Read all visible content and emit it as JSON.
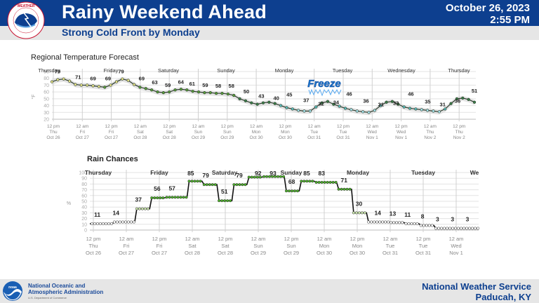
{
  "header": {
    "title": "Rainy Weekend Ahead",
    "subtitle": "Strong Cold Front by Monday",
    "date": "October 26, 2023",
    "time": "2:55 PM",
    "logo_icon": "nws-logo-icon"
  },
  "footer": {
    "noaa_line1": "National Oceanic and",
    "noaa_line2": "Atmospheric Administration",
    "noaa_line3": "U.S. Department of Commerce",
    "office_line1": "National Weather Service",
    "office_line2": "Paducah, KY",
    "noaa_logo_icon": "noaa-logo-icon"
  },
  "annotation": {
    "freeze_label": "Freeze"
  },
  "chart_data": [
    {
      "type": "line",
      "title": "Regional Temperature Forecast",
      "ylabel": "°F",
      "ylim": [
        20,
        90
      ],
      "yticks": [
        20,
        30,
        40,
        50,
        60,
        70,
        80,
        90
      ],
      "day_labels": [
        "Thursday",
        "Friday",
        "Saturday",
        "Sunday",
        "Monday",
        "Tuesday",
        "Wednesday",
        "Thursday"
      ],
      "x_ticks": [
        [
          "12 pm",
          "Thu",
          "Oct 26"
        ],
        [
          "12 am",
          "Fri",
          "Oct 27"
        ],
        [
          "12 pm",
          "Fri",
          "Oct 27"
        ],
        [
          "12 am",
          "Sat",
          "Oct 28"
        ],
        [
          "12 pm",
          "Sat",
          "Oct 28"
        ],
        [
          "12 am",
          "Sun",
          "Oct 29"
        ],
        [
          "12 pm",
          "Sun",
          "Oct 29"
        ],
        [
          "12 am",
          "Mon",
          "Oct 30"
        ],
        [
          "12 pm",
          "Mon",
          "Oct 30"
        ],
        [
          "12 am",
          "Tue",
          "Oct 31"
        ],
        [
          "12 pm",
          "Tue",
          "Oct 31"
        ],
        [
          "12 am",
          "Wed",
          "Nov 1"
        ],
        [
          "12 pm",
          "Wed",
          "Nov 1"
        ],
        [
          "12 am",
          "Thu",
          "Nov 2"
        ],
        [
          "12 pm",
          "Thu",
          "Nov 2"
        ]
      ],
      "labels": [
        {
          "x": 1.5,
          "value": 79
        },
        {
          "x": 7,
          "value": 71
        },
        {
          "x": 11,
          "value": 69
        },
        {
          "x": 15,
          "value": 69
        },
        {
          "x": 18.5,
          "value": 79
        },
        {
          "x": 24,
          "value": 69
        },
        {
          "x": 27.5,
          "value": 63
        },
        {
          "x": 31,
          "value": 59
        },
        {
          "x": 34.5,
          "value": 64
        },
        {
          "x": 37.5,
          "value": 61
        },
        {
          "x": 41,
          "value": 59
        },
        {
          "x": 44.5,
          "value": 58
        },
        {
          "x": 48,
          "value": 58
        },
        {
          "x": 52,
          "value": 50
        },
        {
          "x": 56,
          "value": 43
        },
        {
          "x": 60,
          "value": 40
        },
        {
          "x": 63.5,
          "value": 45
        },
        {
          "x": 68,
          "value": 37
        },
        {
          "x": 72,
          "value": 32
        },
        {
          "x": 76,
          "value": 34
        },
        {
          "x": 79.5,
          "value": 46
        },
        {
          "x": 84,
          "value": 36
        },
        {
          "x": 88,
          "value": 31
        },
        {
          "x": 92,
          "value": 33
        },
        {
          "x": 96,
          "value": 46
        },
        {
          "x": 100.5,
          "value": 35
        },
        {
          "x": 104.5,
          "value": 31
        },
        {
          "x": 108.5,
          "value": 36
        },
        {
          "x": 113,
          "value": 51
        }
      ],
      "series": [
        {
          "name": "Temperature",
          "points_hourly_from_thu_12pm_step3h": [
            75,
            78,
            79,
            76,
            71,
            70,
            70,
            69,
            68,
            67,
            70,
            75,
            79,
            77,
            71,
            67,
            65,
            63,
            60,
            59,
            60,
            63,
            64,
            63,
            61,
            60,
            59,
            59,
            58,
            58,
            57,
            55,
            50,
            47,
            44,
            42,
            44,
            45,
            43,
            40,
            37,
            35,
            33,
            32,
            32,
            38,
            44,
            46,
            42,
            39,
            36,
            34,
            32,
            31,
            30,
            33,
            40,
            45,
            46,
            42,
            38,
            36,
            35,
            34,
            33,
            32,
            31,
            35,
            43,
            50,
            51,
            49,
            45
          ]
        }
      ]
    },
    {
      "type": "line",
      "title": "Rain Chances",
      "ylabel": "%",
      "ylim": [
        0,
        100
      ],
      "yticks": [
        0,
        10,
        20,
        30,
        40,
        50,
        60,
        70,
        80,
        90,
        100
      ],
      "day_labels": [
        "Thursday",
        "Friday",
        "Saturday",
        "Sunday",
        "Monday",
        "Tuesday",
        "We"
      ],
      "x_ticks": [
        [
          "12 pm",
          "Thu",
          "Oct 26"
        ],
        [
          "12 am",
          "Fri",
          "Oct 27"
        ],
        [
          "12 pm",
          "Fri",
          "Oct 27"
        ],
        [
          "12 am",
          "Sat",
          "Oct 28"
        ],
        [
          "12 pm",
          "Sat",
          "Oct 28"
        ],
        [
          "12 am",
          "Sun",
          "Oct 29"
        ],
        [
          "12 pm",
          "Sun",
          "Oct 29"
        ],
        [
          "12 am",
          "Mon",
          "Oct 30"
        ],
        [
          "12 pm",
          "Mon",
          "Oct 30"
        ],
        [
          "12 am",
          "Tue",
          "Oct 31"
        ],
        [
          "12 pm",
          "Tue",
          "Oct 31"
        ],
        [
          "12 am",
          "Wed",
          "Nov 1"
        ]
      ],
      "labels": [
        {
          "x": 1,
          "value": 11
        },
        {
          "x": 3.5,
          "value": 14
        },
        {
          "x": 6.5,
          "value": 37
        },
        {
          "x": 9,
          "value": 56
        },
        {
          "x": 11,
          "value": 57
        },
        {
          "x": 13.5,
          "value": 85
        },
        {
          "x": 15.5,
          "value": 79
        },
        {
          "x": 18,
          "value": 51
        },
        {
          "x": 20,
          "value": 79
        },
        {
          "x": 22.5,
          "value": 92
        },
        {
          "x": 24.5,
          "value": 93
        },
        {
          "x": 27,
          "value": 68
        },
        {
          "x": 29,
          "value": 85
        },
        {
          "x": 31,
          "value": 83
        },
        {
          "x": 34,
          "value": 71
        },
        {
          "x": 36,
          "value": 30
        },
        {
          "x": 38.5,
          "value": 14
        },
        {
          "x": 40.5,
          "value": 13
        },
        {
          "x": 42.5,
          "value": 11
        },
        {
          "x": 44.5,
          "value": 8
        },
        {
          "x": 46.5,
          "value": 3
        },
        {
          "x": 48.5,
          "value": 3
        },
        {
          "x": 50.5,
          "value": 3
        }
      ],
      "series": [
        {
          "name": "Precipitation Probability",
          "steps": [
            {
              "from": 0,
              "to": 3,
              "value": 11
            },
            {
              "from": 3,
              "to": 6,
              "value": 14
            },
            {
              "from": 6,
              "to": 8,
              "value": 37
            },
            {
              "from": 8,
              "to": 10,
              "value": 56
            },
            {
              "from": 10,
              "to": 13,
              "value": 57
            },
            {
              "from": 13,
              "to": 15,
              "value": 85
            },
            {
              "from": 15,
              "to": 17,
              "value": 79
            },
            {
              "from": 17,
              "to": 19,
              "value": 51
            },
            {
              "from": 19,
              "to": 21,
              "value": 79
            },
            {
              "from": 21,
              "to": 23,
              "value": 92
            },
            {
              "from": 23,
              "to": 26,
              "value": 93
            },
            {
              "from": 26,
              "to": 28,
              "value": 68
            },
            {
              "from": 28,
              "to": 30,
              "value": 85
            },
            {
              "from": 30,
              "to": 33,
              "value": 83
            },
            {
              "from": 33,
              "to": 35,
              "value": 71
            },
            {
              "from": 35,
              "to": 37,
              "value": 30
            },
            {
              "from": 37,
              "to": 40,
              "value": 14
            },
            {
              "from": 40,
              "to": 42,
              "value": 13
            },
            {
              "from": 42,
              "to": 44,
              "value": 11
            },
            {
              "from": 44,
              "to": 46,
              "value": 8
            },
            {
              "from": 46,
              "to": 52,
              "value": 3
            }
          ]
        }
      ]
    }
  ]
}
